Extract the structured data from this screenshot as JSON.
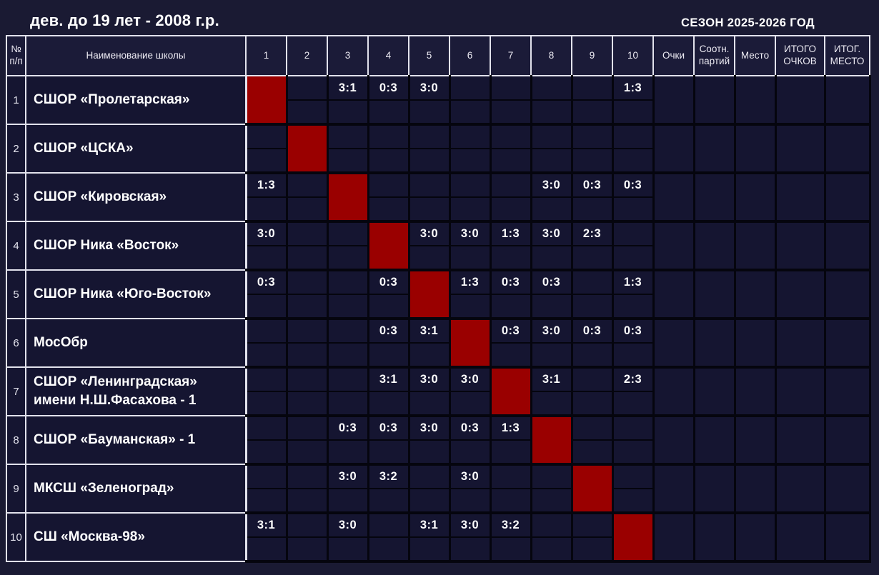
{
  "page": {
    "title": "дев. до 19 лет - 2008 г.р.",
    "season": "СЕЗОН 2025-2026 ГОД"
  },
  "colors": {
    "page_bg": "#1a1a33",
    "cell_bg": "#151531",
    "header_bg": "#1b1b38",
    "diagonal_red": "#9a0000",
    "grid_dark": "#05050e",
    "grid_light": "#e2e2ec",
    "text": "#ffffff"
  },
  "table": {
    "headers": {
      "num": "№ п/п",
      "school": "Наименование школы",
      "opponents": [
        "1",
        "2",
        "3",
        "4",
        "5",
        "6",
        "7",
        "8",
        "9",
        "10"
      ],
      "points": "Очки",
      "set_ratio": "Соотн. партий",
      "place": "Место",
      "total_points": "ИТОГО ОЧКОВ",
      "final_place": "ИТОГ. МЕСТО"
    },
    "rows": [
      {
        "num": "1",
        "school": "СШОР «Пролетарская»",
        "results": [
          "",
          "",
          "3:1",
          "0:3",
          "3:0",
          "",
          "",
          "",
          "",
          "1:3"
        ]
      },
      {
        "num": "2",
        "school": "СШОР «ЦСКА»",
        "results": [
          "",
          "",
          "",
          "",
          "",
          "",
          "",
          "",
          "",
          ""
        ]
      },
      {
        "num": "3",
        "school": "СШОР «Кировская»",
        "results": [
          "1:3",
          "",
          "",
          "",
          "",
          "",
          "",
          "3:0",
          "0:3",
          "0:3"
        ]
      },
      {
        "num": "4",
        "school": "СШОР Ника «Восток»",
        "results": [
          "3:0",
          "",
          "",
          "",
          "3:0",
          "3:0",
          "1:3",
          "3:0",
          "2:3",
          ""
        ]
      },
      {
        "num": "5",
        "school": "СШОР Ника «Юго-Восток»",
        "results": [
          "0:3",
          "",
          "",
          "0:3",
          "",
          "1:3",
          "0:3",
          "0:3",
          "",
          "1:3"
        ]
      },
      {
        "num": "6",
        "school": "МосОбр",
        "results": [
          "",
          "",
          "",
          "0:3",
          "3:1",
          "",
          "0:3",
          "3:0",
          "0:3",
          "0:3"
        ]
      },
      {
        "num": "7",
        "school": "СШОР «Ленинградская»\nимени Н.Ш.Фасахова - 1",
        "results": [
          "",
          "",
          "",
          "3:1",
          "3:0",
          "3:0",
          "",
          "3:1",
          "",
          "2:3"
        ]
      },
      {
        "num": "8",
        "school": "СШОР «Бауманская» - 1",
        "results": [
          "",
          "",
          "0:3",
          "0:3",
          "3:0",
          "0:3",
          "1:3",
          "",
          "",
          ""
        ]
      },
      {
        "num": "9",
        "school": "МКСШ «Зеленоград»",
        "results": [
          "",
          "",
          "3:0",
          "3:2",
          "",
          "3:0",
          "",
          "",
          "",
          ""
        ]
      },
      {
        "num": "10",
        "school": "СШ «Москва-98»",
        "results": [
          "3:1",
          "",
          "3:0",
          "",
          "3:1",
          "3:0",
          "3:2",
          "",
          "",
          ""
        ]
      }
    ]
  }
}
